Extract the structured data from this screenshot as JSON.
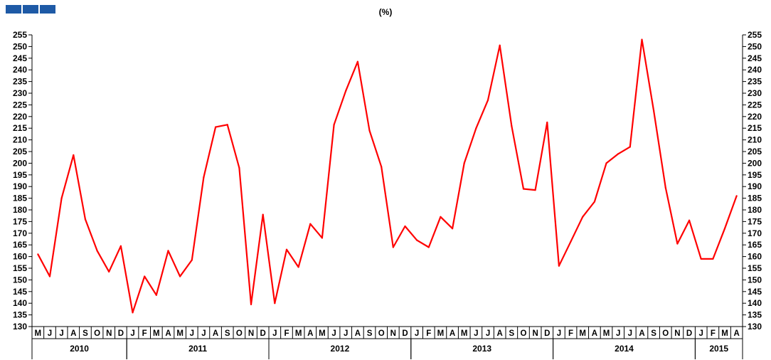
{
  "header": {
    "unit_label": "(%)"
  },
  "chart_data": {
    "type": "line",
    "ylabel": "(%)",
    "ylim": [
      130,
      255
    ],
    "ytick_step": 5,
    "yaxis_sides": [
      "left",
      "right"
    ],
    "grid": false,
    "legend": "none",
    "line_color": "#ff0000",
    "month_labels": [
      "M",
      "J",
      "J",
      "A",
      "S",
      "O",
      "N",
      "D",
      "J",
      "F",
      "M",
      "A",
      "M",
      "J",
      "J",
      "A",
      "S",
      "O",
      "N",
      "D",
      "J",
      "F",
      "M",
      "A",
      "M",
      "J",
      "J",
      "A",
      "S",
      "O",
      "N",
      "D",
      "J",
      "F",
      "M",
      "A",
      "M",
      "J",
      "J",
      "A",
      "S",
      "O",
      "N",
      "D",
      "J",
      "F",
      "M",
      "A",
      "M",
      "J",
      "J",
      "A",
      "S",
      "O",
      "N",
      "D",
      "J",
      "F",
      "M",
      "A"
    ],
    "years": [
      {
        "label": "2010",
        "start": 0,
        "count": 8
      },
      {
        "label": "2011",
        "start": 8,
        "count": 12
      },
      {
        "label": "2012",
        "start": 20,
        "count": 12
      },
      {
        "label": "2013",
        "start": 32,
        "count": 12
      },
      {
        "label": "2014",
        "start": 44,
        "count": 12
      },
      {
        "label": "2015",
        "start": 56,
        "count": 4
      }
    ],
    "values": [
      161,
      151.5,
      185,
      203.5,
      176,
      162.5,
      153.5,
      164.5,
      136,
      151.5,
      143.5,
      162.5,
      151.5,
      158.5,
      194,
      215.5,
      216.5,
      198,
      139.5,
      178,
      140,
      163,
      155.5,
      174,
      168,
      216.5,
      231,
      243.5,
      214,
      198.5,
      164,
      173,
      167,
      164,
      177,
      172,
      200,
      215,
      227,
      250.5,
      216,
      189,
      188.5,
      217.5,
      156,
      166.5,
      177,
      183.5,
      200,
      204,
      207,
      253,
      222.5,
      189.5,
      165.5,
      175.5,
      159,
      159,
      172,
      186
    ]
  }
}
